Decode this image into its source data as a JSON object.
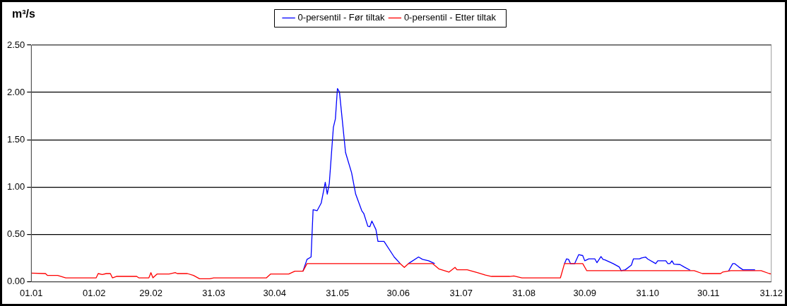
{
  "chart_data": {
    "type": "line",
    "ylabel": "m³/s",
    "legend": "top",
    "grid": "y",
    "marker": "none",
    "line_style": "solid",
    "xlim": [
      "--01-01",
      "--12-31"
    ],
    "xticks": [
      {
        "value": "--01-01",
        "label": "01.01"
      },
      {
        "value": "--02-01",
        "label": "01.02"
      },
      {
        "value": "--02-29",
        "label": "29.02"
      },
      {
        "value": "--03-31",
        "label": "31.03"
      },
      {
        "value": "--04-30",
        "label": "30.04"
      },
      {
        "value": "--05-31",
        "label": "31.05"
      },
      {
        "value": "--06-30",
        "label": "30.06"
      },
      {
        "value": "--07-31",
        "label": "31.07"
      },
      {
        "value": "--08-31",
        "label": "31.08"
      },
      {
        "value": "--09-30",
        "label": "30.09"
      },
      {
        "value": "--10-31",
        "label": "31.10"
      },
      {
        "value": "--11-30",
        "label": "30.11"
      },
      {
        "value": "--12-31",
        "label": "31.12"
      }
    ],
    "ylim": [
      0,
      2.5
    ],
    "yticks": [
      {
        "value": 0,
        "label": "0.00"
      },
      {
        "value": 0.5,
        "label": "0.50"
      },
      {
        "value": 1,
        "label": "1.00"
      },
      {
        "value": 1.5,
        "label": "1.50"
      },
      {
        "value": 2,
        "label": "2.00"
      },
      {
        "value": 2.5,
        "label": "2.50"
      }
    ],
    "series": [
      {
        "name": "0-persentil - Før tiltak",
        "color": "#0000ff",
        "x": [
          "--05-14",
          "--05-16",
          "--05-18",
          "--05-19",
          "--05-21",
          "--05-23",
          "--05-25",
          "--05-26",
          "--05-27",
          "--05-29",
          "--05-30",
          "--05-31",
          "--06-01",
          "--06-04",
          "--06-07",
          "--06-09",
          "--06-12",
          "--06-13",
          "--06-15",
          "--06-16",
          "--06-17",
          "--06-19",
          "--06-20",
          "--06-23",
          "--06-28",
          "--07-01",
          "--07-03",
          "--07-05",
          "--07-10",
          "--07-12",
          "--07-15",
          "--07-18",
          "--08-15",
          "--09-20",
          "--09-21",
          "--09-22",
          "--09-23",
          "--09-25",
          "--09-27",
          "--09-29",
          "--09-30",
          "--10-02",
          "--10-05",
          "--10-06",
          "--10-08",
          "--10-09",
          "--10-10",
          "--10-14",
          "--10-17",
          "--10-18",
          "--10-20",
          "--10-23",
          "--10-24",
          "--10-27",
          "--10-28",
          "--10-30",
          "--10-31",
          "--11-04",
          "--11-05",
          "--11-09",
          "--11-10",
          "--11-11",
          "--11-12",
          "--11-13",
          "--11-16",
          "--11-18",
          "--11-21",
          "--11-27",
          "--12-10",
          "--12-12",
          "--12-13",
          "--12-15",
          "--12-17",
          "--12-23"
        ],
        "values": [
          0.11,
          0.235,
          0.26,
          0.76,
          0.75,
          0.83,
          1.05,
          0.925,
          1.04,
          1.63,
          1.72,
          2.04,
          2.005,
          1.365,
          1.15,
          0.925,
          0.75,
          0.72,
          0.585,
          0.58,
          0.64,
          0.55,
          0.425,
          0.425,
          0.26,
          0.19,
          null,
          0.19,
          0.26,
          0.235,
          0.22,
          0.19,
          null,
          0.19,
          0.24,
          0.235,
          0.19,
          0.19,
          0.285,
          0.275,
          0.22,
          0.24,
          0.24,
          0.2,
          0.265,
          0.235,
          0.23,
          0.19,
          0.155,
          0.115,
          0.125,
          0.175,
          0.24,
          0.24,
          0.25,
          0.26,
          0.24,
          0.19,
          0.22,
          0.22,
          0.19,
          0.19,
          0.22,
          0.185,
          0.18,
          0.155,
          0.12,
          null,
          0.115,
          0.19,
          0.19,
          0.155,
          0.125,
          0.125
        ]
      },
      {
        "name": "0-persentil - Etter tiltak",
        "color": "#ff0000",
        "x": [
          "--01-01",
          "--01-08",
          "--01-09",
          "--01-14",
          "--01-18",
          "--02-02",
          "--02-03",
          "--02-05",
          "--02-07",
          "--02-09",
          "--02-10",
          "--02-12",
          "--02-22",
          "--02-23",
          "--02-28",
          "--02-29",
          "--03-01",
          "--03-03",
          "--03-09",
          "--03-12",
          "--03-13",
          "--03-18",
          "--03-21",
          "--03-24",
          "--03-29",
          "--03-31",
          "--04-26",
          "--04-28",
          "--05-07",
          "--05-10",
          "--05-14",
          "--05-16",
          "--07-01",
          "--07-03",
          "--07-05",
          "--07-17",
          "--07-20",
          "--07-25",
          "--07-28",
          "--07-29",
          "--08-03",
          "--08-08",
          "--08-12",
          "--08-15",
          "--08-24",
          "--08-26",
          "--08-30",
          "--09-18",
          "--09-20",
          "--09-29",
          "--10-01",
          "--11-23",
          "--11-27",
          "--12-06",
          "--12-07",
          "--12-11",
          "--12-26",
          "--12-30",
          "--12-31"
        ],
        "values": [
          0.09,
          0.085,
          0.065,
          0.065,
          0.04,
          0.04,
          0.085,
          0.075,
          0.085,
          0.085,
          0.04,
          0.055,
          0.055,
          0.04,
          0.04,
          0.095,
          0.04,
          0.08,
          0.08,
          0.095,
          0.085,
          0.085,
          0.065,
          0.03,
          0.03,
          0.04,
          0.04,
          0.08,
          0.08,
          0.11,
          0.11,
          0.19,
          0.19,
          0.15,
          0.19,
          0.19,
          0.135,
          0.1,
          0.15,
          0.125,
          0.125,
          0.095,
          0.07,
          0.055,
          0.055,
          0.06,
          0.04,
          0.04,
          0.19,
          0.19,
          0.115,
          0.115,
          0.085,
          0.085,
          0.1,
          0.115,
          0.115,
          0.085,
          0.08
        ]
      }
    ]
  }
}
